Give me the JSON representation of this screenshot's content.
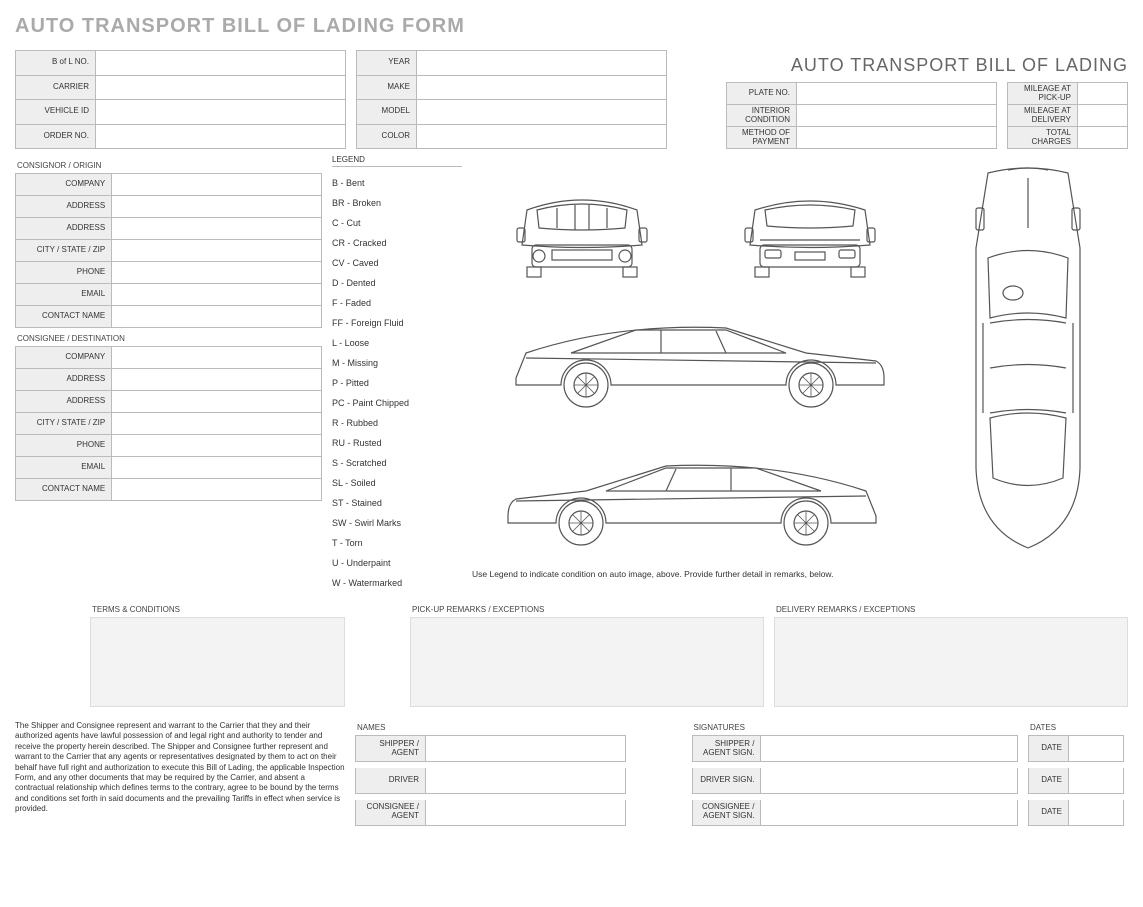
{
  "page_title": "AUTO TRANSPORT BILL OF LADING FORM",
  "doc_title": "AUTO TRANSPORT BILL OF LADING",
  "order_fields": [
    "B of L NO.",
    "CARRIER",
    "VEHICLE ID",
    "ORDER NO."
  ],
  "vehicle_fields": [
    "YEAR",
    "MAKE",
    "MODEL",
    "COLOR"
  ],
  "plate_fields": [
    "PLATE NO.",
    "INTERIOR CONDITION",
    "METHOD OF PAYMENT"
  ],
  "mileage_fields": [
    "MILEAGE AT PICK-UP",
    "MILEAGE AT DELIVERY",
    "TOTAL CHARGES"
  ],
  "consignor_head": "CONSIGNOR / ORIGIN",
  "consignee_head": "CONSIGNEE / DESTINATION",
  "contact_fields": [
    "COMPANY",
    "ADDRESS",
    "ADDRESS",
    "CITY / STATE / ZIP",
    "PHONE",
    "EMAIL",
    "CONTACT NAME"
  ],
  "legend_head": "LEGEND",
  "legend": [
    "B - Bent",
    "BR - Broken",
    "C - Cut",
    "CR - Cracked",
    "CV - Caved",
    "D - Dented",
    "F - Faded",
    "FF - Foreign Fluid",
    "L - Loose",
    "M - Missing",
    "P - Pitted",
    "PC - Paint Chipped",
    "R - Rubbed",
    "RU - Rusted",
    "S - Scratched",
    "SL - Soiled",
    "ST - Stained",
    "SW - Swirl Marks",
    "T - Torn",
    "U - Underpaint",
    "W - Watermarked"
  ],
  "legend_note": "Use Legend to indicate condition on auto image, above.  Provide further detail in remarks, below.",
  "remarks": {
    "terms": "TERMS & CONDITIONS",
    "pickup": "PICK-UP REMARKS / EXCEPTIONS",
    "delivery": "DELIVERY REMARKS / EXCEPTIONS"
  },
  "legal_text": "The Shipper and Consignee represent and warrant to the Carrier that they and their authorized agents have lawful possession of and legal right and authority to tender and receive the property herein described. The Shipper and Consignee further represent and warrant to the Carrier that any agents or representatives designated by them to act on their behalf have full right and authorization to execute this Bill of Lading, the applicable Inspection Form, and any other documents that may be required by the Carrier, and absent a contractual relationship which defines terms to the contrary, agree to be bound by the terms and conditions set forth in said documents and the prevailing Tariffs in effect when service is provided.",
  "sign": {
    "names_head": "NAMES",
    "sigs_head": "SIGNATURES",
    "dates_head": "DATES",
    "names": [
      "SHIPPER / AGENT",
      "DRIVER",
      "CONSIGNEE / AGENT"
    ],
    "sigs": [
      "SHIPPER / AGENT SIGN.",
      "DRIVER SIGN.",
      "CONSIGNEE / AGENT SIGN."
    ],
    "date": "DATE"
  },
  "colors": {
    "label_bg": "#eeeeee",
    "border": "#bbbbbb",
    "title": "#aaaaaa"
  }
}
